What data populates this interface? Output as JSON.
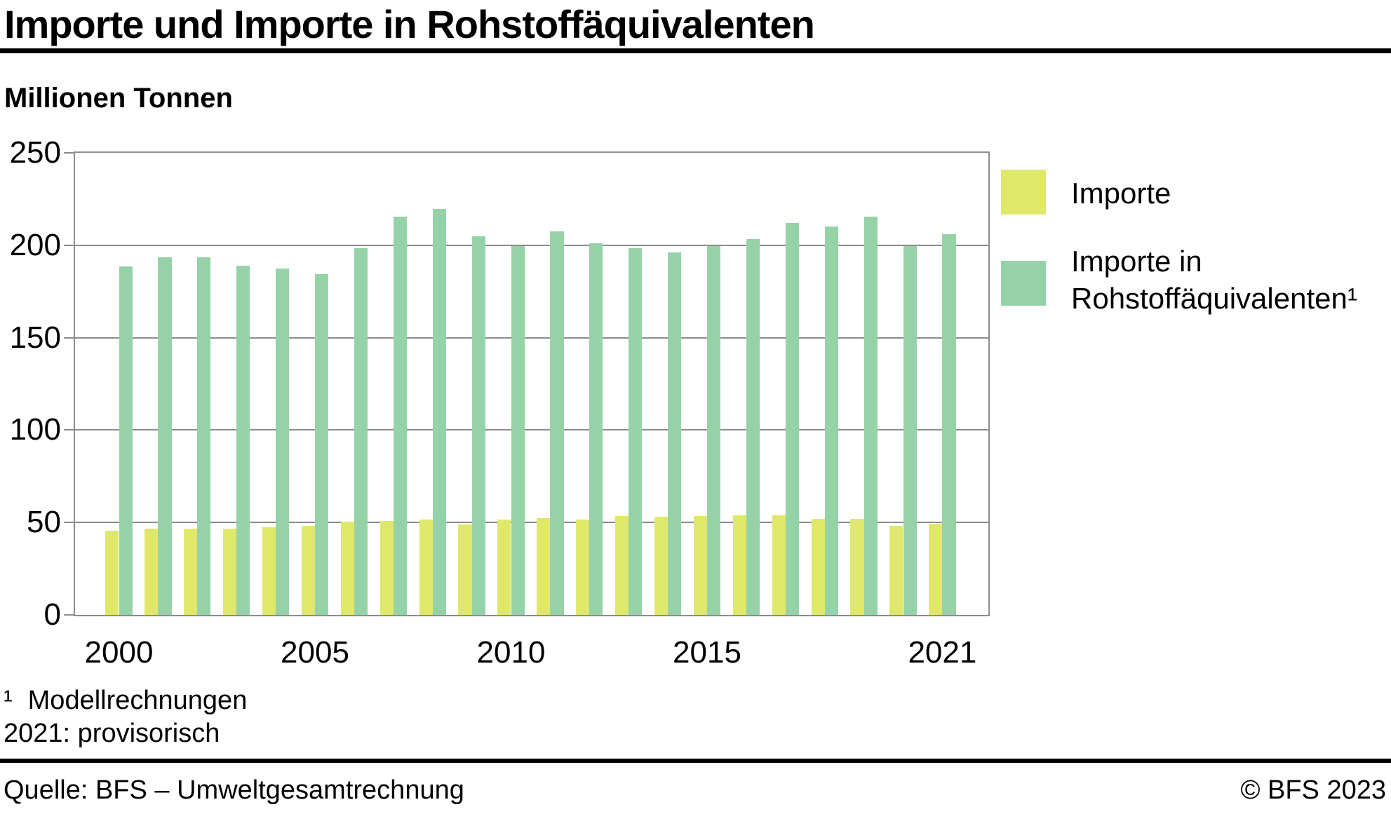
{
  "header": {
    "title": "Importe und Importe in Rohstoffäquivalenten",
    "unit_label": "Millionen Tonnen"
  },
  "chart_data": {
    "type": "bar",
    "title": "Importe und Importe in Rohstoffäquivalenten",
    "ylabel": "Millionen Tonnen",
    "xlabel": "",
    "ylim": [
      0,
      250
    ],
    "yticks": [
      0,
      50,
      100,
      150,
      200,
      250
    ],
    "grid": true,
    "legend_position": "right",
    "categories": [
      2000,
      2001,
      2002,
      2003,
      2004,
      2005,
      2006,
      2007,
      2008,
      2009,
      2010,
      2011,
      2012,
      2013,
      2014,
      2015,
      2016,
      2017,
      2018,
      2019,
      2020,
      2021
    ],
    "xtick_labels": [
      "2000",
      "2005",
      "2010",
      "2015",
      "2021"
    ],
    "series": [
      {
        "name": "Importe",
        "color": "#dfe86a",
        "values": [
          45.5,
          46.5,
          46.5,
          46.5,
          47.5,
          48,
          50.5,
          51,
          51.5,
          49,
          51.5,
          52.5,
          51.5,
          53.5,
          53,
          53.5,
          54,
          54,
          52,
          52,
          48,
          49.5
        ]
      },
      {
        "name": "Importe in Rohstoffäquivalenten¹",
        "color": "#96d2a7",
        "values": [
          188.5,
          193.5,
          193.5,
          189,
          187.5,
          184.5,
          198.5,
          215.5,
          219.5,
          205,
          199.5,
          207.5,
          201,
          198.5,
          196,
          199.5,
          203.5,
          212,
          210,
          215.5,
          199.5,
          206
        ]
      }
    ]
  },
  "footnotes": {
    "marker": "¹",
    "line1": "Modellrechnungen",
    "line2": "2021: provisorisch"
  },
  "footer": {
    "source": "Quelle: BFS – Umweltgesamtrechnung",
    "copyright": "© BFS 2023"
  },
  "colors": {
    "importe": "#dfe86a",
    "rohstoffaequivalente": "#96d2a7",
    "grid": "#8c8c8c",
    "rule": "#000000"
  }
}
